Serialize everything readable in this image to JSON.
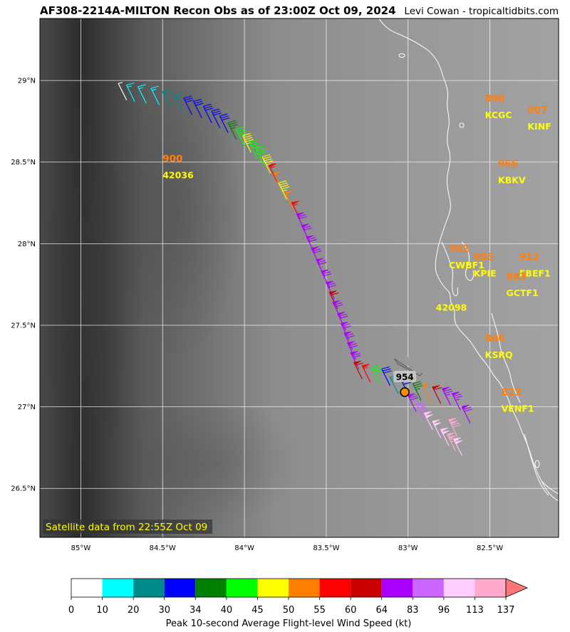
{
  "header": {
    "title": "AF308-2214A-MILTON Recon Obs as of 23:00Z Oct 09, 2024",
    "credit": "Levi Cowan - tropicaltidbits.com"
  },
  "map": {
    "lon_range": [
      -85.25,
      -82.08
    ],
    "lat_range": [
      26.2,
      29.38
    ],
    "lon_ticks": [
      {
        "v": -85.0,
        "label": "85°W"
      },
      {
        "v": -84.5,
        "label": "84.5°W"
      },
      {
        "v": -84.0,
        "label": "84°W"
      },
      {
        "v": -83.5,
        "label": "83.5°W"
      },
      {
        "v": -83.0,
        "label": "83°W"
      },
      {
        "v": -82.5,
        "label": "82.5°W"
      }
    ],
    "lat_ticks": [
      {
        "v": 26.5,
        "label": "26.5°N"
      },
      {
        "v": 27.0,
        "label": "27°N"
      },
      {
        "v": 27.5,
        "label": "27.5°N"
      },
      {
        "v": 28.0,
        "label": "28°N"
      },
      {
        "v": 28.5,
        "label": "28.5°N"
      },
      {
        "v": 29.0,
        "label": "29°N"
      }
    ],
    "grid": true,
    "satellite_label": "Satellite data from 22:55Z Oct 09",
    "center_pressure": "954",
    "center": {
      "lon": -83.02,
      "lat": 27.09
    },
    "aircraft": {
      "lon": -83.0,
      "lat": 27.25
    }
  },
  "stations": [
    {
      "id": "42036",
      "pressure": "900",
      "lon": -84.5,
      "lat": 28.5
    },
    {
      "id": "KCGC",
      "pressure": "890",
      "lon": -82.53,
      "lat": 28.87
    },
    {
      "id": "KINF",
      "pressure": "007",
      "lon": -82.27,
      "lat": 28.8
    },
    {
      "id": "KBKV",
      "pressure": "966",
      "lon": -82.45,
      "lat": 28.47
    },
    {
      "id": "CWBF1",
      "pressure": "902",
      "lon": -82.75,
      "lat": 27.95
    },
    {
      "id": "KPIE",
      "pressure": "885",
      "lon": -82.6,
      "lat": 27.9
    },
    {
      "id": "EBEF1",
      "pressure": "912",
      "lon": -82.32,
      "lat": 27.9
    },
    {
      "id": "GCTF1",
      "pressure": "883",
      "lon": -82.4,
      "lat": 27.78
    },
    {
      "id": "42098",
      "pressure": "",
      "lon": -82.83,
      "lat": 27.59
    },
    {
      "id": "KSRQ",
      "pressure": "800",
      "lon": -82.53,
      "lat": 27.4
    },
    {
      "id": "VENF1",
      "pressure": "823",
      "lon": -82.43,
      "lat": 27.07
    }
  ],
  "colorbar": {
    "title": "Peak 10-second Average Flight-level Wind Speed (kt)",
    "bounds": [
      "0",
      "10",
      "20",
      "30",
      "34",
      "40",
      "45",
      "50",
      "55",
      "60",
      "64",
      "83",
      "96",
      "113",
      "137"
    ],
    "colors": [
      "#ffffff",
      "#00ffff",
      "#008b8b",
      "#0000ff",
      "#008000",
      "#00ff00",
      "#ffff00",
      "#ff7f00",
      "#ff0000",
      "#c80000",
      "#aa00ff",
      "#cc66ff",
      "#ffccff",
      "#ffaacc"
    ],
    "extend_color": "#ff7777"
  },
  "chart_data": {
    "type": "scatter",
    "title": "AF308-2214A-MILTON Recon Obs as of 23:00Z Oct 09, 2024",
    "xlabel": "",
    "ylabel": "",
    "xlim": [
      -85.25,
      -82.08
    ],
    "ylim": [
      26.2,
      29.38
    ],
    "series": [
      {
        "name": "",
        "points": [
          {
            "lon": -84.72,
            "lat": 28.88,
            "kt": 5
          },
          {
            "lon": -84.67,
            "lat": 28.87,
            "kt": 15
          },
          {
            "lon": -84.6,
            "lat": 28.86,
            "kt": 15
          },
          {
            "lon": -84.52,
            "lat": 28.85,
            "kt": 15
          },
          {
            "lon": -84.45,
            "lat": 28.83,
            "kt": 25
          },
          {
            "lon": -84.38,
            "lat": 28.81,
            "kt": 25
          },
          {
            "lon": -84.32,
            "lat": 28.79,
            "kt": 32
          },
          {
            "lon": -84.26,
            "lat": 28.77,
            "kt": 32
          },
          {
            "lon": -84.2,
            "lat": 28.74,
            "kt": 32
          },
          {
            "lon": -84.15,
            "lat": 28.71,
            "kt": 32
          },
          {
            "lon": -84.1,
            "lat": 28.68,
            "kt": 32
          },
          {
            "lon": -84.05,
            "lat": 28.64,
            "kt": 37
          },
          {
            "lon": -84.0,
            "lat": 28.6,
            "kt": 42
          },
          {
            "lon": -83.96,
            "lat": 28.56,
            "kt": 47
          },
          {
            "lon": -83.92,
            "lat": 28.52,
            "kt": 42
          },
          {
            "lon": -83.88,
            "lat": 28.48,
            "kt": 42
          },
          {
            "lon": -83.84,
            "lat": 28.43,
            "kt": 47
          },
          {
            "lon": -83.8,
            "lat": 28.38,
            "kt": 57
          },
          {
            "lon": -83.77,
            "lat": 28.33,
            "kt": 52
          },
          {
            "lon": -83.74,
            "lat": 28.27,
            "kt": 47
          },
          {
            "lon": -83.7,
            "lat": 28.21,
            "kt": 52
          },
          {
            "lon": -83.66,
            "lat": 28.15,
            "kt": 57
          },
          {
            "lon": -83.63,
            "lat": 28.08,
            "kt": 70
          },
          {
            "lon": -83.6,
            "lat": 28.01,
            "kt": 70
          },
          {
            "lon": -83.57,
            "lat": 27.94,
            "kt": 70
          },
          {
            "lon": -83.54,
            "lat": 27.87,
            "kt": 70
          },
          {
            "lon": -83.51,
            "lat": 27.8,
            "kt": 70
          },
          {
            "lon": -83.48,
            "lat": 27.73,
            "kt": 70
          },
          {
            "lon": -83.45,
            "lat": 27.66,
            "kt": 70
          },
          {
            "lon": -83.43,
            "lat": 27.6,
            "kt": 62
          },
          {
            "lon": -83.41,
            "lat": 27.54,
            "kt": 70
          },
          {
            "lon": -83.38,
            "lat": 27.47,
            "kt": 70
          },
          {
            "lon": -83.36,
            "lat": 27.41,
            "kt": 70
          },
          {
            "lon": -83.34,
            "lat": 27.35,
            "kt": 70
          },
          {
            "lon": -83.32,
            "lat": 27.29,
            "kt": 70
          },
          {
            "lon": -83.3,
            "lat": 27.23,
            "kt": 70
          },
          {
            "lon": -83.28,
            "lat": 27.17,
            "kt": 62
          },
          {
            "lon": -83.23,
            "lat": 27.15,
            "kt": 58
          },
          {
            "lon": -83.17,
            "lat": 27.14,
            "kt": 42
          },
          {
            "lon": -83.11,
            "lat": 27.13,
            "kt": 32
          },
          {
            "lon": -83.06,
            "lat": 27.08,
            "kt": 25
          },
          {
            "lon": -82.99,
            "lat": 27.06,
            "kt": 32
          },
          {
            "lon": -82.92,
            "lat": 27.04,
            "kt": 37
          },
          {
            "lon": -82.86,
            "lat": 27.03,
            "kt": 52
          },
          {
            "lon": -82.8,
            "lat": 27.02,
            "kt": 62
          },
          {
            "lon": -82.74,
            "lat": 27.01,
            "kt": 75
          },
          {
            "lon": -82.68,
            "lat": 26.98,
            "kt": 75
          },
          {
            "lon": -82.95,
            "lat": 26.97,
            "kt": 70
          },
          {
            "lon": -82.9,
            "lat": 26.92,
            "kt": 90
          },
          {
            "lon": -82.85,
            "lat": 26.86,
            "kt": 100
          },
          {
            "lon": -82.8,
            "lat": 26.81,
            "kt": 100
          },
          {
            "lon": -82.75,
            "lat": 26.76,
            "kt": 100
          },
          {
            "lon": -82.71,
            "lat": 26.73,
            "kt": 120
          },
          {
            "lon": -82.67,
            "lat": 26.7,
            "kt": 100
          },
          {
            "lon": -82.7,
            "lat": 26.82,
            "kt": 120
          },
          {
            "lon": -82.62,
            "lat": 26.9,
            "kt": 70
          }
        ]
      }
    ]
  }
}
